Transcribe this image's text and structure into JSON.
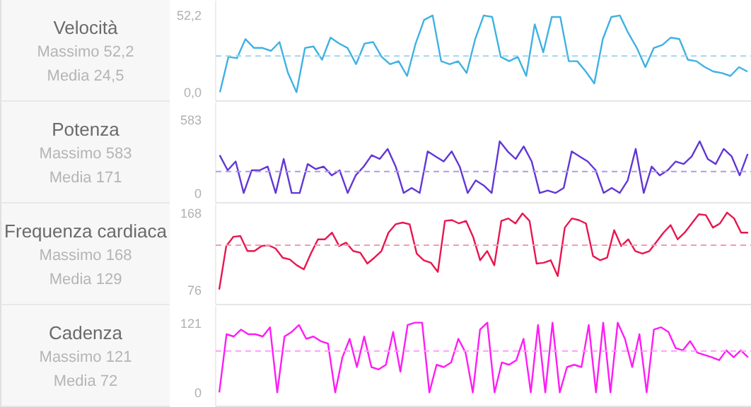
{
  "chart_data": [
    {
      "type": "line",
      "title": "Velocità",
      "annotations": [
        "Massimo 52,2",
        "Media 24,5"
      ],
      "color": "#3fb1e3",
      "tick_labels": "y",
      "ylim": [
        -6,
        62
      ],
      "yticks": [
        {
          "value": 0,
          "label": "0,0"
        },
        {
          "value": 52.2,
          "label": "52,2"
        }
      ],
      "ref_lines": [
        {
          "axis": "y",
          "value": 24.5,
          "color": "#9fd6ef",
          "line_style": "dashed"
        }
      ],
      "categories": [
        null,
        null,
        null,
        null,
        null,
        null,
        null,
        null,
        null,
        null,
        null,
        null,
        null,
        null,
        null,
        null,
        null,
        null,
        null,
        null,
        null,
        null,
        null,
        null,
        null,
        null,
        null,
        null,
        null,
        null,
        null,
        null,
        null,
        null,
        null,
        null,
        null,
        null,
        null,
        null,
        null,
        null,
        null,
        null,
        null,
        null,
        null,
        null,
        null,
        null,
        null,
        null,
        null,
        null,
        null,
        null,
        null,
        null,
        null,
        null,
        null,
        null,
        null
      ],
      "values": [
        0,
        24,
        23,
        36,
        30,
        30,
        28,
        34,
        13,
        0,
        30,
        31,
        22,
        37,
        33,
        30,
        19,
        33,
        34,
        24,
        19,
        21,
        11,
        33,
        49,
        52,
        21,
        19,
        21,
        13,
        36,
        52,
        51,
        24,
        21,
        24,
        11,
        46,
        27,
        51,
        51,
        21,
        21,
        14,
        6,
        36,
        51,
        52,
        40,
        30,
        17,
        30,
        32,
        37,
        36,
        22,
        21,
        17,
        14,
        13,
        11,
        17,
        14
      ]
    },
    {
      "type": "line",
      "title": "Potenza",
      "annotations": [
        "Massimo 583",
        "Media 171"
      ],
      "color": "#6236d6",
      "tick_labels": "y",
      "ylim": [
        -78,
        719
      ],
      "yticks": [
        0,
        583
      ],
      "ref_lines": [
        {
          "axis": "y",
          "value": 171,
          "color": "#b09be8",
          "line_style": "dashed"
        }
      ],
      "categories": [
        null,
        null,
        null,
        null,
        null,
        null,
        null,
        null,
        null,
        null,
        null,
        null,
        null,
        null,
        null,
        null,
        null,
        null,
        null,
        null,
        null,
        null,
        null,
        null,
        null,
        null,
        null,
        null,
        null,
        null,
        null,
        null,
        null,
        null,
        null,
        null,
        null,
        null,
        null,
        null,
        null,
        null,
        null,
        null,
        null,
        null,
        null,
        null,
        null,
        null,
        null,
        null,
        null,
        null,
        null,
        null,
        null,
        null,
        null,
        null,
        null,
        null,
        null,
        null,
        null,
        null,
        null
      ],
      "values": [
        300,
        180,
        250,
        0,
        180,
        180,
        210,
        0,
        270,
        0,
        0,
        230,
        190,
        210,
        140,
        180,
        0,
        140,
        210,
        300,
        270,
        350,
        210,
        0,
        40,
        0,
        330,
        290,
        250,
        330,
        210,
        0,
        100,
        60,
        0,
        410,
        330,
        270,
        370,
        250,
        0,
        20,
        0,
        40,
        330,
        290,
        250,
        180,
        0,
        40,
        0,
        100,
        350,
        0,
        210,
        140,
        180,
        250,
        230,
        290,
        410,
        270,
        230,
        350,
        290,
        140,
        310
      ]
    },
    {
      "type": "line",
      "title": "Frequenza cardiaca",
      "annotations": [
        "Massimo 168",
        "Media 129"
      ],
      "color": "#e8164f",
      "tick_labels": "y",
      "ylim": [
        58,
        178
      ],
      "yticks": [
        76,
        168
      ],
      "ref_lines": [
        {
          "axis": "y",
          "value": 129,
          "color": "#f39ab2",
          "line_style": "dashed"
        }
      ],
      "categories": [
        null,
        null,
        null,
        null,
        null,
        null,
        null,
        null,
        null,
        null,
        null,
        null,
        null,
        null,
        null,
        null,
        null,
        null,
        null,
        null,
        null,
        null,
        null,
        null,
        null,
        null,
        null,
        null,
        null,
        null,
        null,
        null,
        null,
        null,
        null,
        null,
        null,
        null,
        null,
        null,
        null,
        null,
        null,
        null,
        null,
        null,
        null,
        null,
        null,
        null,
        null,
        null,
        null,
        null,
        null,
        null,
        null,
        null,
        null,
        null,
        null,
        null,
        null,
        null,
        null,
        null,
        null,
        null,
        null,
        null,
        null,
        null,
        null,
        null,
        null,
        null
      ],
      "values": [
        76,
        128,
        139,
        140,
        122,
        122,
        128,
        129,
        125,
        114,
        112,
        105,
        100,
        119,
        136,
        136,
        144,
        128,
        132,
        122,
        120,
        107,
        114,
        122,
        144,
        154,
        156,
        154,
        119,
        111,
        108,
        97,
        158,
        159,
        155,
        158,
        139,
        111,
        122,
        105,
        158,
        161,
        155,
        167,
        158,
        107,
        108,
        111,
        92,
        150,
        161,
        159,
        155,
        116,
        111,
        114,
        147,
        128,
        136,
        122,
        119,
        122,
        133,
        144,
        153,
        136,
        144,
        155,
        166,
        165,
        150,
        155,
        168,
        161,
        144,
        144
      ]
    },
    {
      "type": "line",
      "title": "Cadenza",
      "annotations": [
        "Massimo 121",
        "Media 72"
      ],
      "color": "#ff1cf5",
      "tick_labels": "y",
      "ylim": [
        -24,
        150
      ],
      "yticks": [
        0,
        121
      ],
      "ref_lines": [
        {
          "axis": "y",
          "value": 72,
          "color": "#ff9cf9",
          "line_style": "dashed"
        }
      ],
      "categories": [
        null,
        null,
        null,
        null,
        null,
        null,
        null,
        null,
        null,
        null,
        null,
        null,
        null,
        null,
        null,
        null,
        null,
        null,
        null,
        null,
        null,
        null,
        null,
        null,
        null,
        null,
        null,
        null,
        null,
        null,
        null,
        null,
        null,
        null,
        null,
        null,
        null,
        null,
        null,
        null,
        null,
        null,
        null,
        null,
        null,
        null,
        null,
        null,
        null,
        null,
        null,
        null,
        null,
        null,
        null,
        null,
        null,
        null,
        null,
        null,
        null,
        null,
        null,
        null,
        null,
        null,
        null,
        null,
        null,
        null,
        null,
        null,
        null,
        null
      ],
      "values": [
        0,
        101,
        97,
        109,
        101,
        101,
        97,
        113,
        0,
        97,
        105,
        117,
        93,
        97,
        89,
        85,
        0,
        61,
        93,
        44,
        97,
        44,
        40,
        48,
        105,
        36,
        117,
        121,
        121,
        0,
        48,
        44,
        52,
        93,
        69,
        0,
        109,
        121,
        0,
        52,
        48,
        56,
        93,
        0,
        117,
        0,
        121,
        0,
        44,
        48,
        44,
        117,
        0,
        121,
        0,
        121,
        93,
        44,
        101,
        0,
        109,
        113,
        105,
        77,
        73,
        89,
        69,
        65,
        61,
        56,
        73,
        61,
        73,
        61
      ]
    }
  ]
}
